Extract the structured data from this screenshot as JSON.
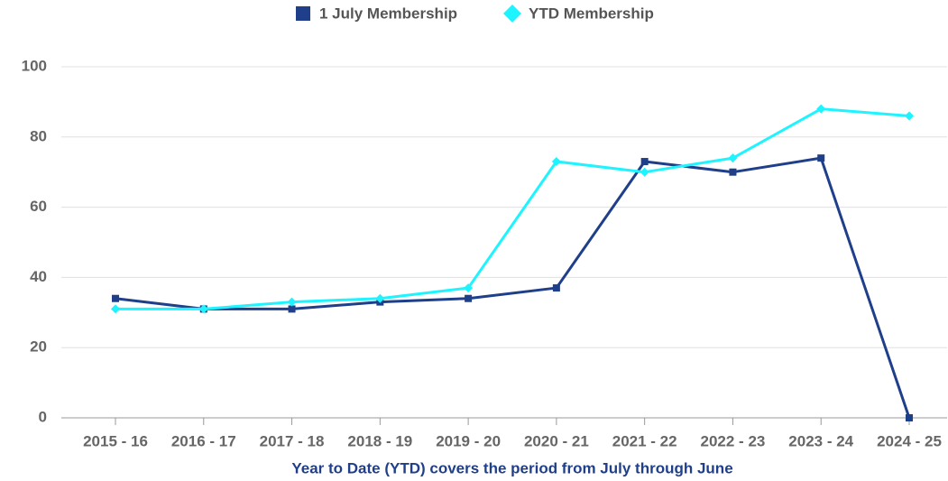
{
  "chart_data": {
    "type": "line",
    "x_label": "Year to Date (YTD) covers the period from July through June",
    "categories": [
      "2015 - 16",
      "2016 - 17",
      "2017 - 18",
      "2018 - 19",
      "2019 - 20",
      "2020 - 21",
      "2021 - 22",
      "2022 - 23",
      "2023 - 24",
      "2024 - 25"
    ],
    "series": [
      {
        "name": "1 July Membership",
        "color": "#1f3f8a",
        "marker": "square",
        "values": [
          34,
          31,
          31,
          33,
          34,
          37,
          73,
          70,
          74,
          0
        ]
      },
      {
        "name": "YTD Membership",
        "color": "#1ef4ff",
        "marker": "diamond",
        "values": [
          31,
          31,
          33,
          34,
          37,
          73,
          70,
          74,
          88,
          86
        ]
      }
    ],
    "ylim": [
      0,
      100
    ],
    "yticks": [
      0,
      20,
      40,
      60,
      80,
      100
    ],
    "grid": true,
    "legend": "top"
  }
}
